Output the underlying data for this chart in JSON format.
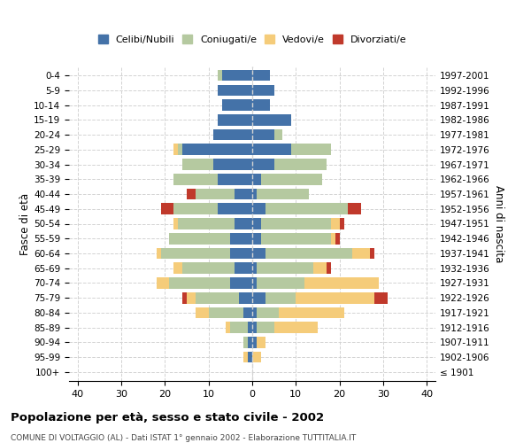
{
  "age_groups": [
    "100+",
    "95-99",
    "90-94",
    "85-89",
    "80-84",
    "75-79",
    "70-74",
    "65-69",
    "60-64",
    "55-59",
    "50-54",
    "45-49",
    "40-44",
    "35-39",
    "30-34",
    "25-29",
    "20-24",
    "15-19",
    "10-14",
    "5-9",
    "0-4"
  ],
  "birth_years": [
    "≤ 1901",
    "1902-1906",
    "1907-1911",
    "1912-1916",
    "1917-1921",
    "1922-1926",
    "1927-1931",
    "1932-1936",
    "1937-1941",
    "1942-1946",
    "1947-1951",
    "1952-1956",
    "1957-1961",
    "1962-1966",
    "1967-1971",
    "1972-1976",
    "1977-1981",
    "1982-1986",
    "1987-1991",
    "1992-1996",
    "1997-2001"
  ],
  "males": {
    "celibi": [
      0,
      1,
      1,
      1,
      2,
      3,
      5,
      4,
      5,
      5,
      4,
      8,
      4,
      8,
      9,
      16,
      9,
      8,
      7,
      8,
      7
    ],
    "coniugati": [
      0,
      0,
      1,
      4,
      8,
      10,
      14,
      12,
      16,
      14,
      13,
      10,
      9,
      10,
      7,
      1,
      0,
      0,
      0,
      0,
      1
    ],
    "vedovi": [
      0,
      1,
      0,
      1,
      3,
      2,
      3,
      2,
      1,
      0,
      1,
      0,
      0,
      0,
      0,
      1,
      0,
      0,
      0,
      0,
      0
    ],
    "divorziati": [
      0,
      0,
      0,
      0,
      0,
      1,
      0,
      0,
      0,
      0,
      0,
      3,
      2,
      0,
      0,
      0,
      0,
      0,
      0,
      0,
      0
    ]
  },
  "females": {
    "nubili": [
      0,
      0,
      1,
      1,
      1,
      3,
      1,
      1,
      3,
      2,
      2,
      3,
      1,
      2,
      5,
      9,
      5,
      9,
      4,
      5,
      4
    ],
    "coniugate": [
      0,
      0,
      0,
      4,
      5,
      7,
      11,
      13,
      20,
      16,
      16,
      19,
      12,
      14,
      12,
      9,
      2,
      0,
      0,
      0,
      0
    ],
    "vedove": [
      0,
      2,
      2,
      10,
      15,
      18,
      17,
      3,
      4,
      1,
      2,
      0,
      0,
      0,
      0,
      0,
      0,
      0,
      0,
      0,
      0
    ],
    "divorziate": [
      0,
      0,
      0,
      0,
      0,
      3,
      0,
      1,
      1,
      1,
      1,
      3,
      0,
      0,
      0,
      0,
      0,
      0,
      0,
      0,
      0
    ]
  },
  "colors": {
    "celibi": "#4472a8",
    "coniugati": "#b5c9a0",
    "vedovi": "#f5cc7a",
    "divorziati": "#c0392b"
  },
  "xlim": [
    -42,
    42
  ],
  "xticks": [
    -40,
    -30,
    -20,
    -10,
    0,
    10,
    20,
    30,
    40
  ],
  "xticklabels": [
    "40",
    "30",
    "20",
    "10",
    "0",
    "10",
    "20",
    "30",
    "40"
  ],
  "title": "Popolazione per età, sesso e stato civile - 2002",
  "subtitle": "COMUNE DI VOLTAGGIO (AL) - Dati ISTAT 1° gennaio 2002 - Elaborazione TUTTITALIA.IT",
  "ylabel_left": "Fasce di età",
  "ylabel_right": "Anni di nascita",
  "legend_labels": [
    "Celibi/Nubili",
    "Coniugati/e",
    "Vedovi/e",
    "Divorziati/e"
  ]
}
